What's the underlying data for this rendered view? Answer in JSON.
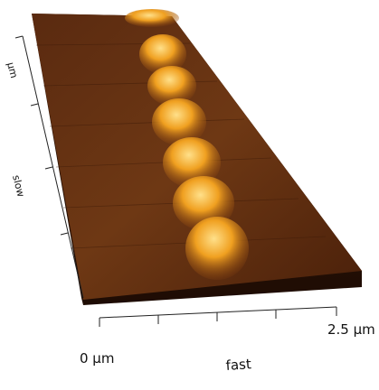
{
  "axes": {
    "fast": {
      "title": "fast",
      "start": "0 µm",
      "end": "2.5 µm"
    },
    "slow": {
      "title": "slow",
      "end": "µm"
    }
  }
}
